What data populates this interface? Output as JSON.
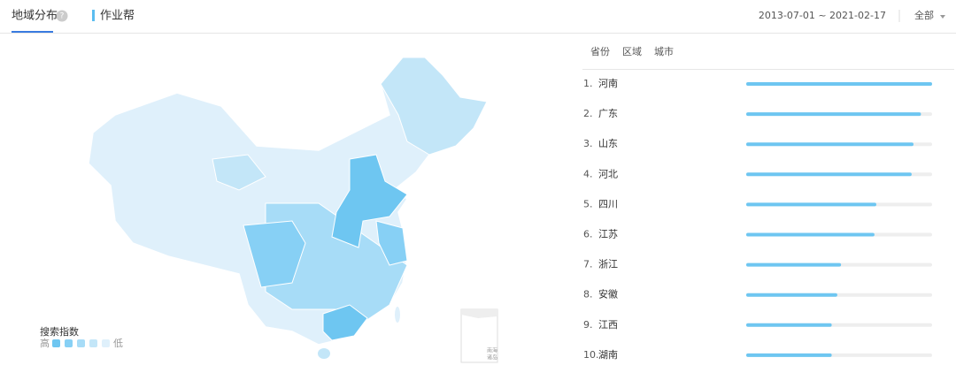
{
  "header": {
    "title": "地域分布",
    "help_icon": "?",
    "keyword": "作业帮",
    "date_range": "2013-07-01 ~ 2021-02-17",
    "scope": "全部"
  },
  "map": {
    "legend_title": "搜索指数",
    "legend_high": "高",
    "legend_low": "低",
    "inset_label": [
      "南海",
      "诸岛"
    ]
  },
  "ranking": {
    "tabs": [
      "省份",
      "区域",
      "城市"
    ],
    "ranks": [
      "1.",
      "2.",
      "3.",
      "4.",
      "5.",
      "6.",
      "7.",
      "8.",
      "9.",
      "10."
    ],
    "names": [
      "河南",
      "广东",
      "山东",
      "河北",
      "四川",
      "江苏",
      "浙江",
      "安徽",
      "江西",
      "湖南"
    ],
    "values": [
      100,
      94,
      90,
      89,
      70,
      69,
      51,
      49,
      46,
      46
    ]
  }
}
